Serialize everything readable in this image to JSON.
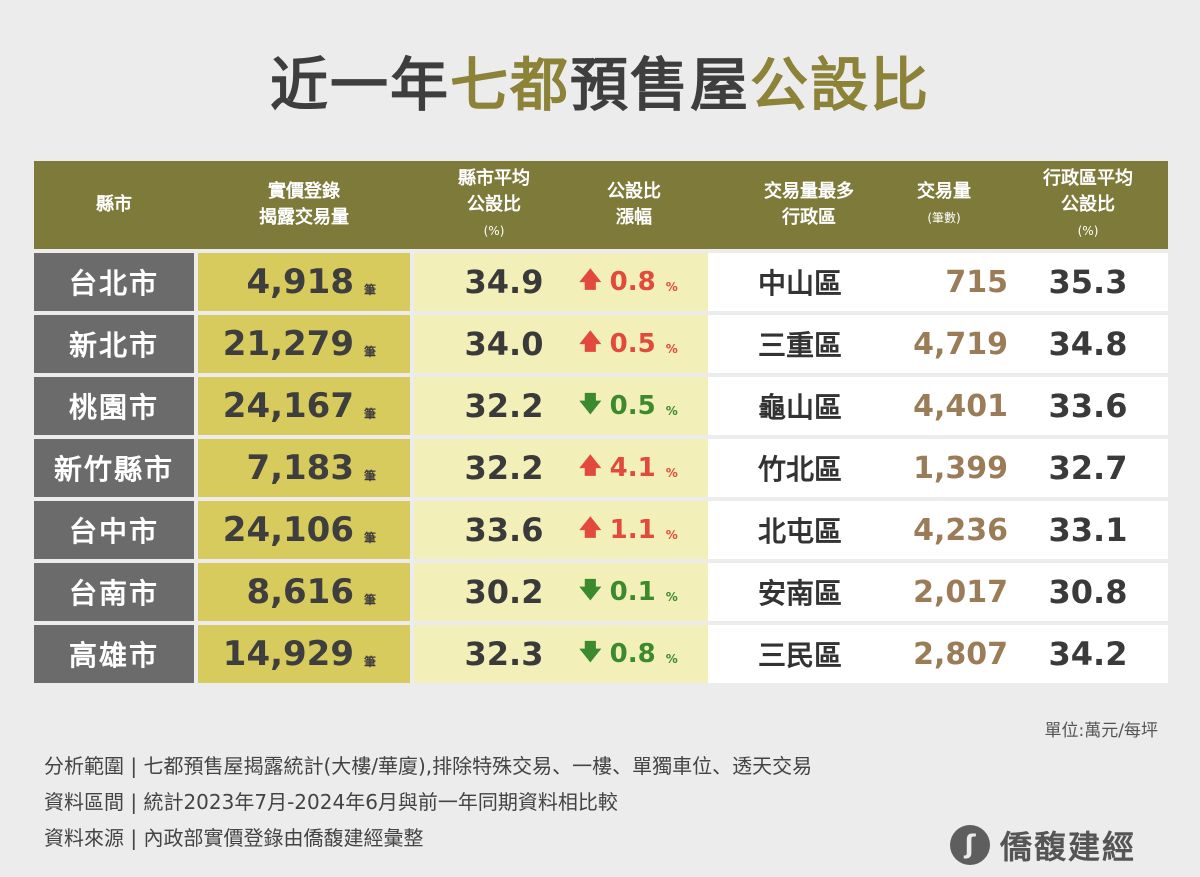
{
  "title": {
    "part1": "近一年",
    "part2": "七都",
    "part3": "預售屋",
    "part4": "公設比"
  },
  "colors": {
    "header_bg": "#7d7a3a",
    "city_bg": "#6b6b6b",
    "volume_bg": "#d7cb5e",
    "avg_bg": "#f2f0b8",
    "up": "#e14a3c",
    "down": "#3d8a2e",
    "district_count": "#9a7d58"
  },
  "headers": {
    "city": "縣市",
    "volume_l1": "實價登錄",
    "volume_l2": "揭露交易量",
    "avg_l1": "縣市平均",
    "avg_l2": "公設比",
    "avg_unit": "(%)",
    "change_l1": "公設比",
    "change_l2": "漲幅",
    "district_l1": "交易量最多",
    "district_l2": "行政區",
    "count_l1": "交易量",
    "count_l2": "(筆數)",
    "davg_l1": "行政區平均",
    "davg_l2": "公設比",
    "davg_unit": "(%)"
  },
  "volume_unit": "筆",
  "percent_unit": "%",
  "rows": [
    {
      "city": "台北市",
      "volume": "4,918",
      "avg": "34.9",
      "dir": "up",
      "arrow": "🡅",
      "change": "0.8",
      "district": "中山區",
      "count": "715",
      "davg": "35.3"
    },
    {
      "city": "新北市",
      "volume": "21,279",
      "avg": "34.0",
      "dir": "up",
      "arrow": "🡅",
      "change": "0.5",
      "district": "三重區",
      "count": "4,719",
      "davg": "34.8"
    },
    {
      "city": "桃園市",
      "volume": "24,167",
      "avg": "32.2",
      "dir": "down",
      "arrow": "🡇",
      "change": "0.5",
      "district": "龜山區",
      "count": "4,401",
      "davg": "33.6"
    },
    {
      "city": "新竹縣市",
      "volume": "7,183",
      "avg": "32.2",
      "dir": "up",
      "arrow": "🡅",
      "change": "4.1",
      "district": "竹北區",
      "count": "1,399",
      "davg": "32.7"
    },
    {
      "city": "台中市",
      "volume": "24,106",
      "avg": "33.6",
      "dir": "up",
      "arrow": "🡅",
      "change": "1.1",
      "district": "北屯區",
      "count": "4,236",
      "davg": "33.1"
    },
    {
      "city": "台南市",
      "volume": "8,616",
      "avg": "30.2",
      "dir": "down",
      "arrow": "🡇",
      "change": "0.1",
      "district": "安南區",
      "count": "2,017",
      "davg": "30.8"
    },
    {
      "city": "高雄市",
      "volume": "14,929",
      "avg": "32.3",
      "dir": "down",
      "arrow": "🡇",
      "change": "0.8",
      "district": "三民區",
      "count": "2,807",
      "davg": "34.2"
    }
  ],
  "unit_note": "單位:萬元/每坪",
  "notes": [
    "分析範圍 | 七都預售屋揭露統計(大樓/華廈),排除特殊交易、一樓、單獨車位、透天交易",
    "資料區間 | 統計2023年7月-2024年6月與前一年同期資料相比較",
    "資料來源 | 內政部實價登錄由僑馥建經彙整"
  ],
  "logo": {
    "mark": "ʃ",
    "text": "僑馥建經"
  }
}
